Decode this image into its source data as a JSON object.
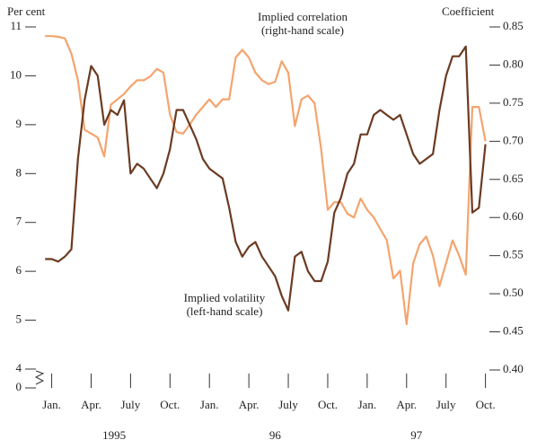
{
  "chart_data": {
    "type": "line",
    "y_label": "Per cent",
    "y2_label": "Coefficient",
    "annotations": [
      {
        "lines": [
          "Implied correlation",
          "(right-hand scale)"
        ],
        "series": 1
      },
      {
        "lines": [
          "Implied volatility",
          "(left-hand scale)"
        ],
        "series": 0
      }
    ],
    "x": [
      -0.5,
      0,
      0.5,
      1,
      1.5,
      2,
      2.5,
      3,
      3.5,
      4,
      4.5,
      5,
      5.5,
      6,
      6.5,
      7,
      7.5,
      8,
      8.5,
      9,
      9.5,
      10,
      10.5,
      11,
      11.5,
      12,
      12.5,
      13,
      13.5,
      14,
      14.5,
      15,
      15.5,
      16,
      16.5,
      17,
      17.5,
      18,
      18.5,
      19,
      19.5,
      20,
      20.5,
      21,
      21.5,
      22,
      22.5,
      23,
      23.5,
      24,
      24.5,
      25,
      25.5,
      26,
      26.5,
      27,
      27.5,
      28,
      28.5,
      29,
      29.5,
      30,
      30.5,
      31,
      31.5,
      32,
      32.5,
      33
    ],
    "series": [
      {
        "name": "Implied volatility",
        "color": "#6b3b22",
        "axis": "y",
        "values": [
          6.25,
          6.25,
          6.2,
          6.3,
          6.45,
          8.3,
          9.5,
          10.2,
          10.0,
          9.0,
          9.3,
          9.2,
          9.5,
          8.0,
          8.2,
          8.1,
          7.9,
          7.7,
          8.0,
          8.5,
          9.3,
          9.3,
          9.0,
          8.7,
          8.3,
          8.1,
          8.0,
          7.9,
          7.3,
          6.6,
          6.3,
          6.5,
          6.6,
          6.3,
          6.1,
          5.9,
          5.5,
          5.2,
          6.3,
          6.4,
          6.0,
          5.8,
          5.8,
          6.2,
          7.2,
          7.5,
          8.0,
          8.2,
          8.8,
          8.8,
          9.2,
          9.3,
          9.2,
          9.1,
          9.2,
          8.8,
          8.4,
          8.2,
          8.3,
          8.4,
          9.3,
          10.0,
          10.4,
          10.4,
          10.6,
          7.2,
          7.3,
          8.6
        ]
      },
      {
        "name": "Implied correlation",
        "color": "#f4a46e",
        "axis": "y2",
        "values": [
          0.838,
          0.838,
          0.837,
          0.835,
          0.815,
          0.78,
          0.715,
          0.71,
          0.705,
          0.68,
          0.748,
          0.755,
          0.762,
          0.772,
          0.78,
          0.78,
          0.785,
          0.795,
          0.79,
          0.735,
          0.712,
          0.71,
          0.722,
          0.735,
          0.745,
          0.755,
          0.745,
          0.755,
          0.755,
          0.81,
          0.82,
          0.81,
          0.79,
          0.78,
          0.775,
          0.778,
          0.805,
          0.79,
          0.72,
          0.755,
          0.76,
          0.75,
          0.69,
          0.61,
          0.62,
          0.62,
          0.605,
          0.6,
          0.625,
          0.61,
          0.6,
          0.585,
          0.57,
          0.52,
          0.53,
          0.46,
          0.54,
          0.565,
          0.575,
          0.55,
          0.51,
          0.54,
          0.57,
          0.55,
          0.525,
          0.745,
          0.745,
          0.7
        ]
      }
    ],
    "xlim": [
      -1.2,
      33.3
    ],
    "xticks": [
      {
        "value": 0,
        "label": "Jan."
      },
      {
        "value": 3,
        "label": "Apr."
      },
      {
        "value": 6,
        "label": "July"
      },
      {
        "value": 9,
        "label": "Oct."
      },
      {
        "value": 12,
        "label": "Jan."
      },
      {
        "value": 15,
        "label": "Apr."
      },
      {
        "value": 18,
        "label": "July"
      },
      {
        "value": 21,
        "label": "Oct."
      },
      {
        "value": 24,
        "label": "Jan."
      },
      {
        "value": 27,
        "label": "Apr."
      },
      {
        "value": 30,
        "label": "July"
      },
      {
        "value": 33,
        "label": "Oct."
      }
    ],
    "years": [
      {
        "label": "1995",
        "value": 4.75
      },
      {
        "label": "96",
        "value": 17
      },
      {
        "label": "97",
        "value": 27.75
      }
    ],
    "ylim": [
      4,
      11
    ],
    "yticks": [
      4,
      5,
      6,
      7,
      8,
      9,
      10,
      11
    ],
    "y_break_tick": 0,
    "y2lim": [
      0.4,
      0.85
    ],
    "y2ticks": [
      {
        "value": 0.4,
        "label": "0.40"
      },
      {
        "value": 0.45,
        "label": "0.45"
      },
      {
        "value": 0.5,
        "label": "0.50"
      },
      {
        "value": 0.55,
        "label": "0.55"
      },
      {
        "value": 0.6,
        "label": "0.60"
      },
      {
        "value": 0.65,
        "label": "0.65"
      },
      {
        "value": 0.7,
        "label": "0.70"
      },
      {
        "value": 0.75,
        "label": "0.75"
      },
      {
        "value": 0.8,
        "label": "0.80"
      },
      {
        "value": 0.85,
        "label": "0.85"
      }
    ]
  }
}
